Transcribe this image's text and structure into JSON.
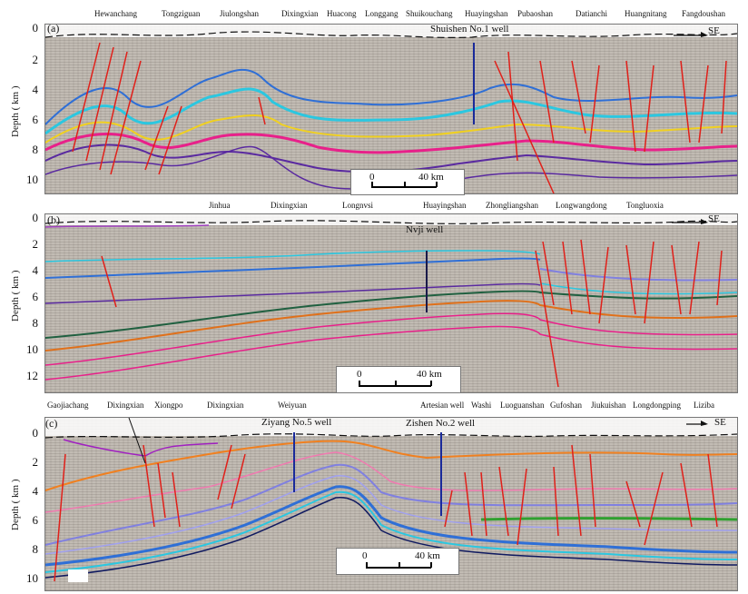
{
  "panels": {
    "a": {
      "letter": "(a)",
      "ylabel": "Depth ( km )",
      "ticks": [
        "0",
        "2",
        "4",
        "6",
        "8",
        "10"
      ],
      "places": [
        "Hewanchang",
        "Tongziguan",
        "Jiulongshan",
        "Dixingxian",
        "Huacong",
        "Longgang",
        "Shuikouchang",
        "Huayingshan",
        "Pubaoshan",
        "Datianchi",
        "Huangnitang",
        "Fangdoushan"
      ],
      "well": "Shuishen No.1 well",
      "direction": "SE",
      "scale": {
        "zero": "0",
        "value": "40 km"
      }
    },
    "b": {
      "letter": "(b)",
      "ylabel": "Depth ( km )",
      "ticks": [
        "0",
        "2",
        "4",
        "6",
        "8",
        "10",
        "12"
      ],
      "places": [
        "Jinhua",
        "Dixingxian",
        "Longnvsi",
        "Huayingshan",
        "Zhongliangshan",
        "Longwangdong",
        "Tongluoxia"
      ],
      "well": "Nvji well",
      "direction": "SE",
      "scale": {
        "zero": "0",
        "value": "40 km"
      }
    },
    "c": {
      "letter": "(c)",
      "ylabel": "Depth ( km )",
      "ticks": [
        "0",
        "2",
        "4",
        "6",
        "8",
        "10"
      ],
      "places": [
        "Gaojiachang",
        "Dixingxian",
        "Xiongpo",
        "Dixingxian",
        "Weiyuan",
        "Artesian well",
        "Washi",
        "Luoguanshan",
        "Gufoshan",
        "Jiukuishan",
        "Longdongping",
        "Liziba"
      ],
      "wells": [
        "Ziyang No.5 well",
        "Zishen No.2 well"
      ],
      "direction": "SE",
      "scale": {
        "zero": "0",
        "value": "40 km"
      }
    }
  },
  "colors": {
    "fault": "#e0201a",
    "horizon_blue": "#2f6fd6",
    "horizon_cyan": "#2bc7e0",
    "horizon_yellow": "#f0d020",
    "horizon_magenta": "#e8208a",
    "horizon_purple": "#5a2aa0",
    "horizon_orange": "#f08020",
    "horizon_green": "#30a030",
    "horizon_navy": "#101a60",
    "well": "#1a2a9a"
  }
}
